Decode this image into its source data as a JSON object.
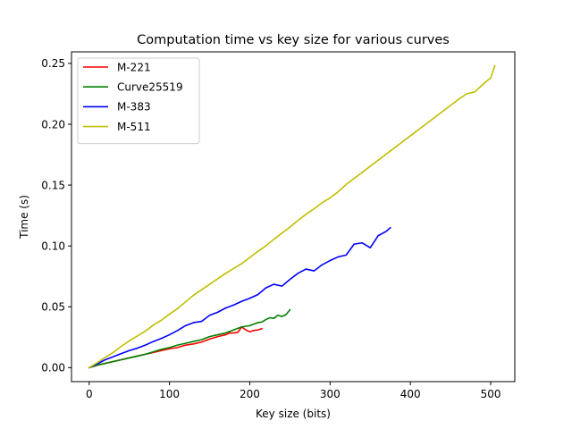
{
  "chart_data": {
    "type": "line",
    "title": "Computation time vs key size for various curves",
    "xlabel": "Key size (bits)",
    "ylabel": "Time (s)",
    "xlim": [
      -22,
      530
    ],
    "ylim": [
      -0.0115,
      0.2595
    ],
    "xticks": [
      0,
      100,
      200,
      300,
      400,
      500
    ],
    "xtick_labels": [
      "0",
      "100",
      "200",
      "300",
      "400",
      "500"
    ],
    "yticks": [
      0.0,
      0.05,
      0.1,
      0.15,
      0.2,
      0.25
    ],
    "ytick_labels": [
      "0.00",
      "0.05",
      "0.10",
      "0.15",
      "0.20",
      "0.25"
    ],
    "grid": false,
    "legend_position": "upper-left",
    "series": [
      {
        "name": "M-221",
        "color": "#ff0000",
        "x": [
          0,
          10,
          20,
          30,
          40,
          50,
          60,
          70,
          80,
          90,
          100,
          110,
          120,
          130,
          140,
          150,
          160,
          170,
          175,
          180,
          185,
          190,
          195,
          200,
          205,
          210,
          215
        ],
        "y": [
          0.0,
          0.002,
          0.0035,
          0.005,
          0.0065,
          0.008,
          0.0095,
          0.011,
          0.0125,
          0.014,
          0.0155,
          0.0165,
          0.0185,
          0.0195,
          0.021,
          0.0235,
          0.0255,
          0.027,
          0.0285,
          0.0285,
          0.029,
          0.0335,
          0.031,
          0.0295,
          0.0305,
          0.031,
          0.032
        ]
      },
      {
        "name": "Curve25519",
        "color": "#008000",
        "x": [
          0,
          10,
          20,
          30,
          40,
          50,
          60,
          70,
          80,
          90,
          100,
          110,
          120,
          130,
          140,
          150,
          160,
          170,
          180,
          190,
          200,
          210,
          215,
          220,
          225,
          230,
          235,
          240,
          245,
          250
        ],
        "y": [
          0.0,
          0.002,
          0.0035,
          0.005,
          0.0065,
          0.008,
          0.0095,
          0.011,
          0.013,
          0.015,
          0.0165,
          0.0185,
          0.02,
          0.0215,
          0.023,
          0.0255,
          0.027,
          0.0285,
          0.031,
          0.0335,
          0.0345,
          0.037,
          0.0375,
          0.0395,
          0.041,
          0.0405,
          0.043,
          0.042,
          0.0435,
          0.0475
        ]
      },
      {
        "name": "M-383",
        "color": "#0000ff",
        "x": [
          0,
          10,
          20,
          30,
          40,
          50,
          60,
          70,
          80,
          90,
          100,
          110,
          120,
          130,
          140,
          150,
          160,
          170,
          180,
          190,
          200,
          210,
          220,
          230,
          240,
          250,
          260,
          270,
          280,
          290,
          300,
          310,
          320,
          330,
          340,
          350,
          360,
          370,
          375
        ],
        "y": [
          0.0,
          0.003,
          0.0065,
          0.009,
          0.0115,
          0.014,
          0.016,
          0.0185,
          0.0215,
          0.024,
          0.027,
          0.0305,
          0.0345,
          0.037,
          0.038,
          0.043,
          0.0455,
          0.049,
          0.0515,
          0.0545,
          0.057,
          0.06,
          0.0655,
          0.0685,
          0.067,
          0.0725,
          0.0775,
          0.081,
          0.0795,
          0.0845,
          0.088,
          0.091,
          0.0925,
          0.1015,
          0.1025,
          0.0985,
          0.1085,
          0.112,
          0.115
        ]
      },
      {
        "name": "M-511",
        "color": "#bfbf00",
        "x": [
          0,
          10,
          20,
          30,
          40,
          50,
          60,
          70,
          80,
          90,
          100,
          110,
          120,
          130,
          140,
          150,
          160,
          170,
          180,
          190,
          200,
          210,
          220,
          230,
          240,
          250,
          260,
          270,
          280,
          290,
          300,
          310,
          320,
          330,
          340,
          350,
          360,
          370,
          380,
          390,
          400,
          410,
          420,
          430,
          440,
          450,
          460,
          470,
          480,
          490,
          495,
          500,
          505
        ],
        "y": [
          0.0,
          0.004,
          0.0085,
          0.0125,
          0.0175,
          0.022,
          0.026,
          0.03,
          0.035,
          0.039,
          0.044,
          0.0485,
          0.054,
          0.0595,
          0.064,
          0.0685,
          0.073,
          0.0775,
          0.0815,
          0.0855,
          0.0905,
          0.0955,
          0.1,
          0.1055,
          0.1105,
          0.1155,
          0.121,
          0.126,
          0.1305,
          0.1355,
          0.1395,
          0.1445,
          0.1505,
          0.1555,
          0.1605,
          0.1655,
          0.1705,
          0.1755,
          0.1805,
          0.1855,
          0.1905,
          0.1955,
          0.2005,
          0.2055,
          0.2105,
          0.2155,
          0.2205,
          0.225,
          0.2265,
          0.2325,
          0.2355,
          0.238,
          0.248
        ]
      }
    ]
  }
}
